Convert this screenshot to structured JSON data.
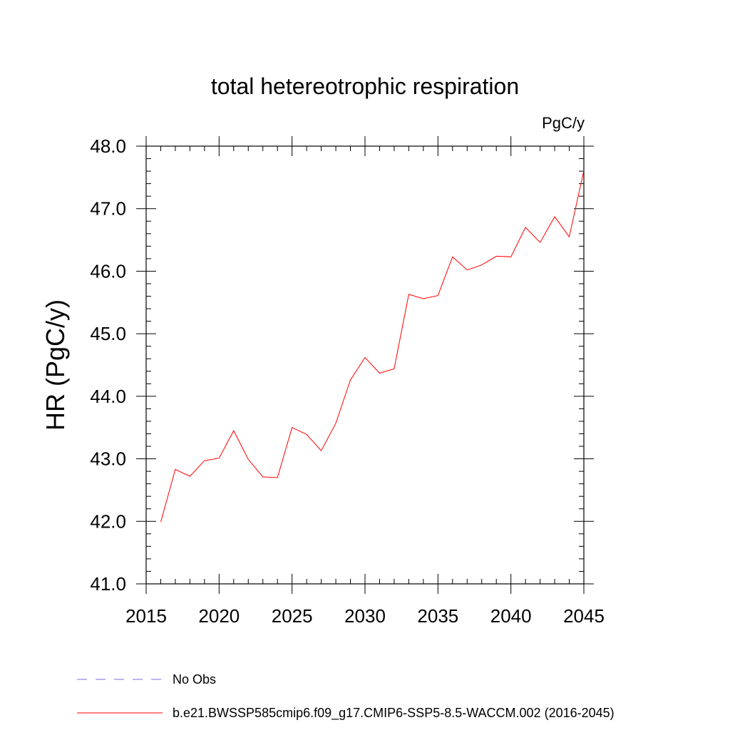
{
  "chart_data": {
    "type": "line",
    "title": "total hetereotrophic respiration",
    "units_label": "PgC/y",
    "ylabel": "HR  (PgC/y)",
    "xlabel": "",
    "xlim": [
      2015,
      2045
    ],
    "ylim": [
      41.0,
      48.0
    ],
    "x_ticks": [
      2015,
      2020,
      2025,
      2030,
      2035,
      2040,
      2045
    ],
    "x_tick_labels": [
      "2015",
      "2020",
      "2025",
      "2030",
      "2035",
      "2040",
      "2045"
    ],
    "y_ticks": [
      41.0,
      42.0,
      43.0,
      44.0,
      45.0,
      46.0,
      47.0,
      48.0
    ],
    "y_tick_labels": [
      "41.0",
      "42.0",
      "43.0",
      "44.0",
      "45.0",
      "46.0",
      "47.0",
      "48.0"
    ],
    "grid": false,
    "legend_position": "bottom",
    "series": [
      {
        "name": "b.e21.BWSSP585cmip6.f09_g17.CMIP6-SSP5-8.5-WACCM.002 (2016-2045)",
        "color": "#ff0000",
        "style": "solid",
        "x": [
          2016,
          2017,
          2018,
          2019,
          2020,
          2021,
          2022,
          2023,
          2024,
          2025,
          2026,
          2027,
          2028,
          2029,
          2030,
          2031,
          2032,
          2033,
          2034,
          2035,
          2036,
          2037,
          2038,
          2039,
          2040,
          2041,
          2042,
          2043,
          2044,
          2045
        ],
        "y": [
          41.99,
          42.83,
          42.72,
          42.97,
          43.01,
          43.45,
          42.99,
          42.71,
          42.7,
          43.5,
          43.39,
          43.13,
          43.57,
          44.26,
          44.62,
          44.37,
          44.44,
          45.63,
          45.56,
          45.61,
          46.23,
          46.02,
          46.1,
          46.24,
          46.23,
          46.7,
          46.46,
          46.87,
          46.55,
          47.61
        ]
      },
      {
        "name": "No Obs",
        "color": "#7b68ee",
        "style": "dashed",
        "x": [],
        "y": []
      }
    ]
  }
}
